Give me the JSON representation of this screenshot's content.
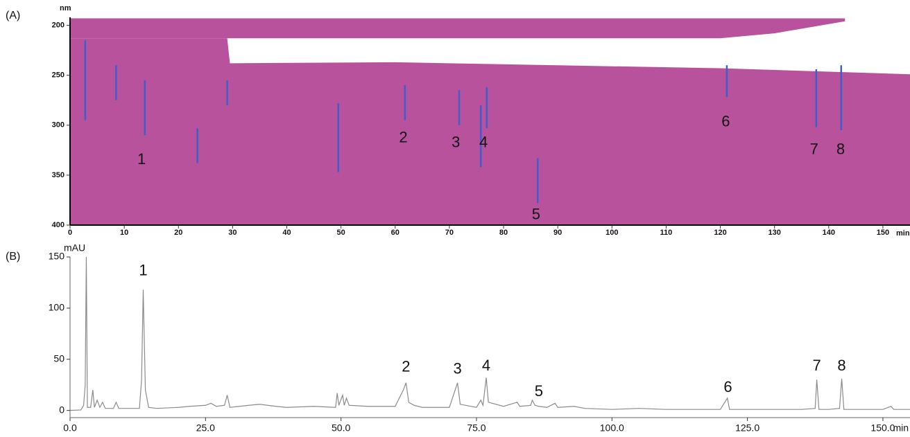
{
  "chart_data": [
    {
      "type": "contour",
      "panel_label": "(A)",
      "ylabel": "nm",
      "xlabel": "min",
      "xlim": [
        0,
        155
      ],
      "ylim": [
        192,
        400
      ],
      "y_reversed": true,
      "xticks": [
        0,
        10,
        20,
        30,
        40,
        50,
        60,
        70,
        80,
        90,
        100,
        110,
        120,
        130,
        140,
        150
      ],
      "yticks": [
        200,
        250,
        300,
        350,
        400
      ],
      "color": "#b8529c",
      "streak_color": "#3f5fc8",
      "band": {
        "x": [
          0,
          120,
          130,
          143
        ],
        "top": [
          193,
          193,
          193,
          193
        ],
        "bottom": [
          213,
          213,
          208,
          196
        ]
      },
      "edge": {
        "x": [
          0,
          29,
          29.5,
          60,
          90,
          120,
          155
        ],
        "values": [
          213,
          213,
          238,
          237,
          240,
          243,
          249
        ]
      },
      "streaks": [
        {
          "x": 2.8,
          "nm": [
            215,
            295
          ]
        },
        {
          "x": 8.5,
          "nm": [
            240,
            275
          ]
        },
        {
          "x": 13.8,
          "nm": [
            255,
            310
          ]
        },
        {
          "x": 23.5,
          "nm": [
            303,
            338
          ]
        },
        {
          "x": 29,
          "nm": [
            255,
            280
          ]
        },
        {
          "x": 49.5,
          "nm": [
            278,
            347
          ]
        },
        {
          "x": 61.8,
          "nm": [
            260,
            295
          ]
        },
        {
          "x": 71.8,
          "nm": [
            265,
            300
          ]
        },
        {
          "x": 75.8,
          "nm": [
            280,
            342
          ]
        },
        {
          "x": 76.9,
          "nm": [
            262,
            303
          ]
        },
        {
          "x": 86.3,
          "nm": [
            333,
            378
          ]
        },
        {
          "x": 121.2,
          "nm": [
            240,
            272
          ]
        },
        {
          "x": 137.7,
          "nm": [
            244,
            302
          ]
        },
        {
          "x": 142.3,
          "nm": [
            240,
            305
          ]
        }
      ],
      "annotations": [
        {
          "text": "1",
          "x": 13.2,
          "y": 335
        },
        {
          "text": "2",
          "x": 61.5,
          "y": 313
        },
        {
          "text": "3",
          "x": 71.2,
          "y": 318
        },
        {
          "text": "4",
          "x": 76.3,
          "y": 318
        },
        {
          "text": "5",
          "x": 86,
          "y": 390
        },
        {
          "text": "6",
          "x": 121,
          "y": 297
        },
        {
          "text": "7",
          "x": 137.3,
          "y": 325
        },
        {
          "text": "8",
          "x": 142.2,
          "y": 325
        }
      ]
    },
    {
      "type": "line",
      "panel_label": "(B)",
      "ylabel": "mAU",
      "xlabel": "min",
      "xlim": [
        0,
        155
      ],
      "ylim": [
        -7,
        150
      ],
      "xticks": [
        {
          "value": 0,
          "label": "0.0"
        },
        {
          "value": 25,
          "label": "25.0"
        },
        {
          "value": 50,
          "label": "50.0"
        },
        {
          "value": 75,
          "label": "75.0"
        },
        {
          "value": 100,
          "label": "100.0"
        },
        {
          "value": 125,
          "label": "125.0"
        },
        {
          "value": 150,
          "label": "150.0"
        }
      ],
      "yticks": [
        0,
        50,
        100,
        150
      ],
      "series": [
        {
          "color": "#8a8a8a",
          "x": [
            0,
            2,
            2.5,
            2.8,
            3,
            3.2,
            3.8,
            4.2,
            4.5,
            5,
            5.5,
            6,
            6.5,
            8,
            8.5,
            9,
            12.8,
            13.2,
            13.5,
            13.9,
            14.5,
            16,
            20,
            22,
            25,
            26,
            27,
            28.5,
            29,
            29.5,
            33,
            35,
            38,
            40,
            45,
            49,
            49.3,
            49.6,
            50.3,
            50.6,
            51,
            51.5,
            55,
            60,
            61.5,
            62,
            62.5,
            63.5,
            65,
            70,
            71.5,
            72,
            75,
            75.8,
            76.2,
            76.8,
            77.2,
            80,
            82.5,
            83,
            85,
            85.3,
            85.8,
            86.5,
            88,
            89.5,
            90,
            93,
            95,
            100,
            105,
            110,
            115,
            120,
            121.3,
            121.7,
            125,
            130,
            135,
            137.5,
            137.8,
            138.2,
            140,
            142,
            142.4,
            142.8,
            145,
            150,
            151.5,
            152,
            155
          ],
          "values": [
            0,
            0.5,
            5,
            25,
            150,
            3,
            3,
            20,
            3,
            10,
            3,
            8,
            2,
            2,
            8,
            2,
            2,
            30,
            118,
            20,
            3,
            2,
            3,
            4,
            5,
            7,
            4,
            5,
            15,
            3,
            5,
            6,
            4,
            3,
            4,
            3,
            17,
            5,
            15,
            5,
            12,
            5,
            4,
            4,
            20,
            27,
            8,
            5,
            3,
            3,
            27,
            6,
            3,
            10,
            5,
            32,
            8,
            4,
            8,
            4,
            5,
            10,
            5,
            4,
            3,
            7,
            3,
            4,
            2,
            1,
            2,
            1,
            1,
            1,
            12,
            1,
            1,
            1,
            1,
            2,
            30,
            1,
            1,
            2,
            31,
            1,
            1,
            1,
            4,
            1,
            1
          ]
        }
      ],
      "annotations": [
        {
          "text": "1",
          "x": 13.5,
          "y": 136
        },
        {
          "text": "2",
          "x": 62,
          "y": 42
        },
        {
          "text": "3",
          "x": 71.5,
          "y": 40
        },
        {
          "text": "4",
          "x": 76.8,
          "y": 43
        },
        {
          "text": "5",
          "x": 86.5,
          "y": 18
        },
        {
          "text": "6",
          "x": 121.4,
          "y": 22
        },
        {
          "text": "7",
          "x": 137.8,
          "y": 43
        },
        {
          "text": "8",
          "x": 142.4,
          "y": 43
        }
      ]
    }
  ]
}
